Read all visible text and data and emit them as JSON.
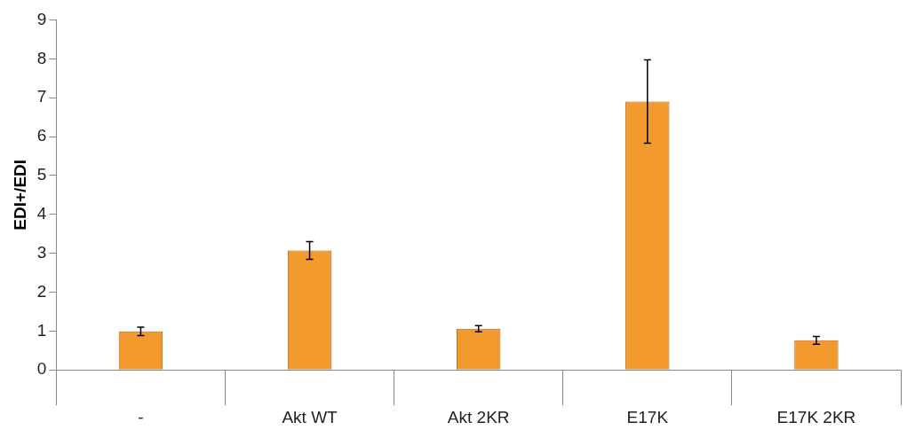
{
  "chart_data": {
    "type": "bar",
    "ylabel": "EDI+/EDI",
    "categories": [
      "-",
      "Akt WT",
      "Akt 2KR",
      "E17K",
      "E17K 2KR"
    ],
    "values": [
      0.99,
      3.07,
      1.06,
      6.9,
      0.76
    ],
    "errors": [
      0.11,
      0.23,
      0.08,
      1.07,
      0.1
    ],
    "color": "#f39a2e",
    "ylim": [
      0,
      9
    ],
    "yticks": [
      0,
      1,
      2,
      3,
      4,
      5,
      6,
      7,
      8,
      9
    ],
    "grid": false,
    "legend": false
  }
}
